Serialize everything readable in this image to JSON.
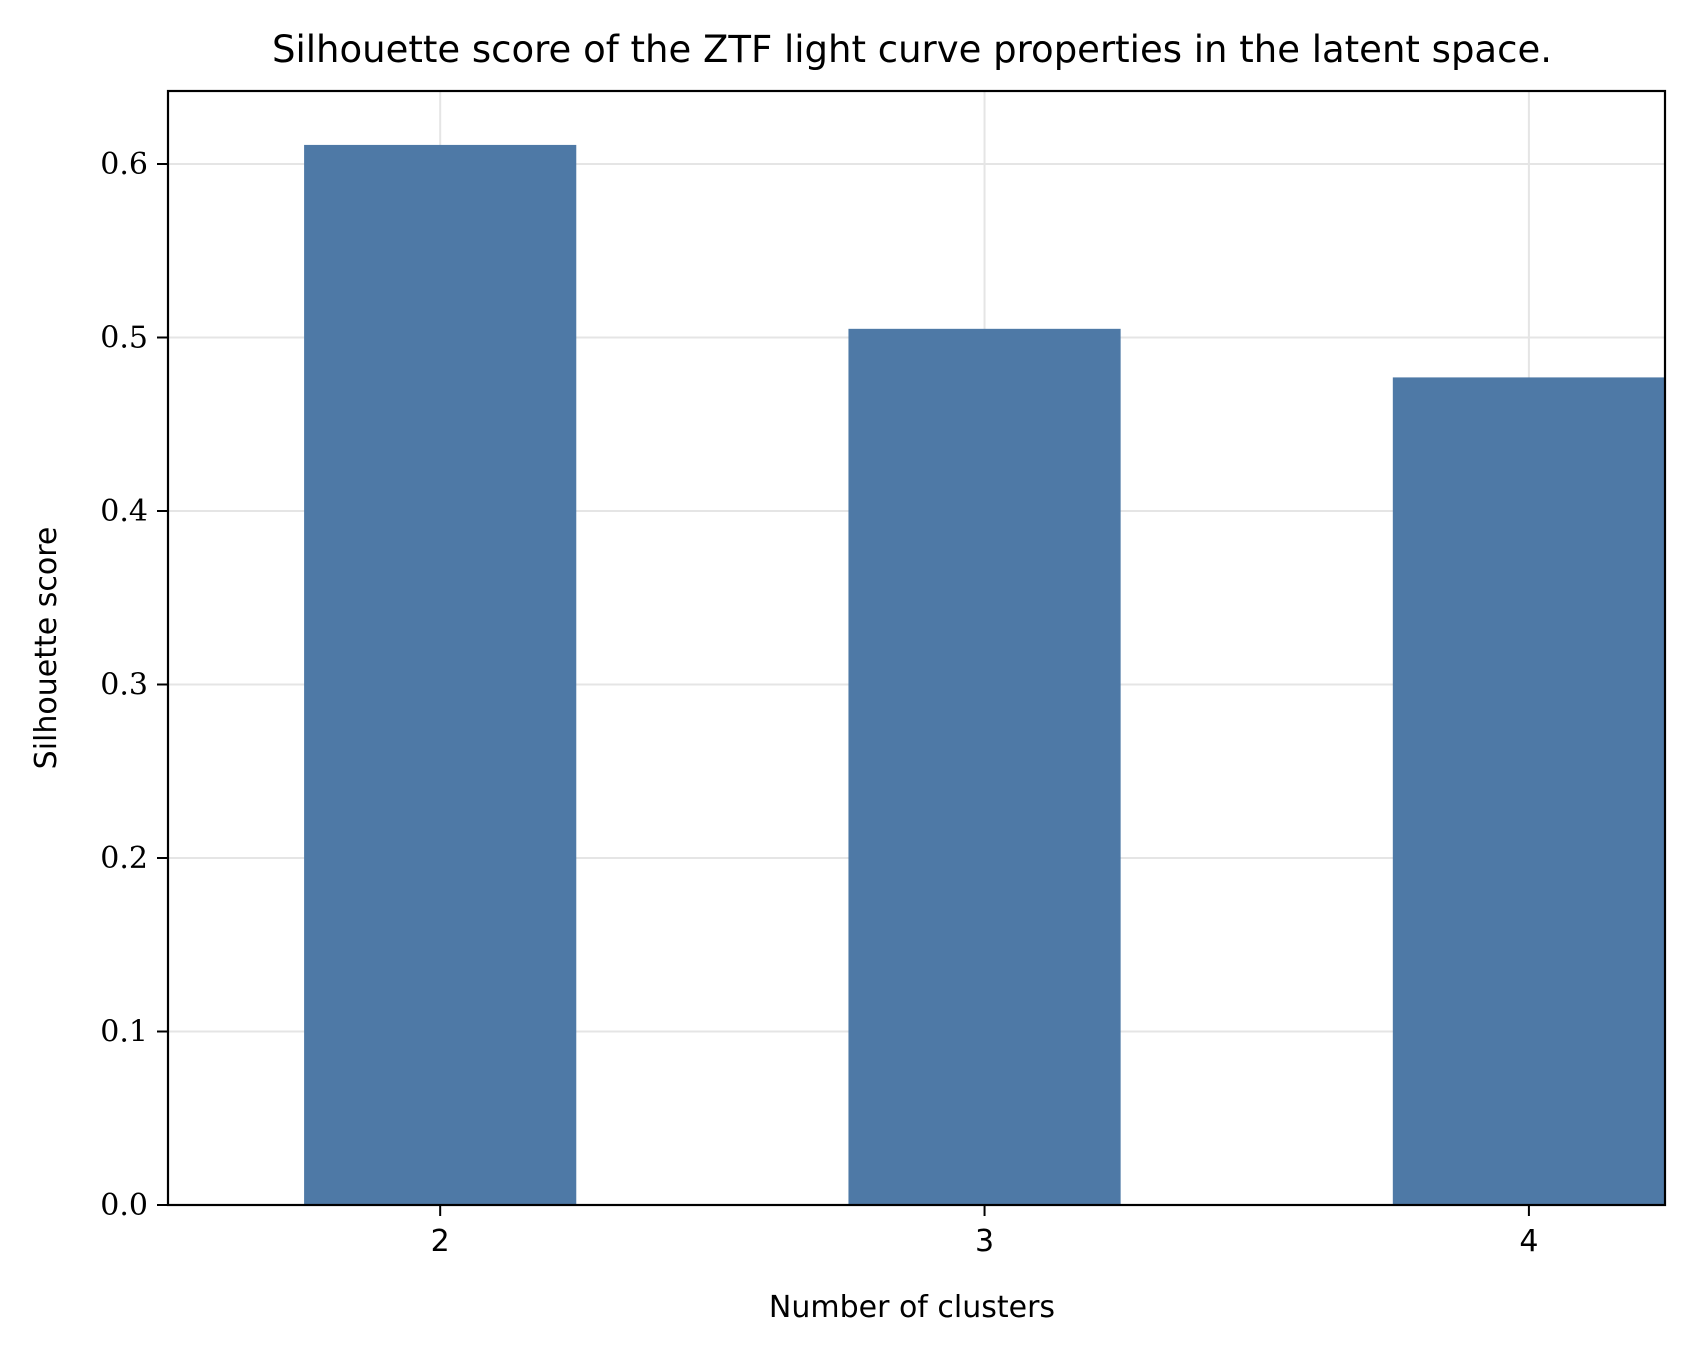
{
  "chart_data": {
    "type": "bar",
    "title": "Silhouette score of the ZTF light curve properties in the latent space.",
    "xlabel": "Number of clusters",
    "ylabel": "Silhouette score",
    "categories": [
      "2",
      "3",
      "4"
    ],
    "values": [
      0.611,
      0.505,
      0.477
    ],
    "ylim": [
      0,
      0.64
    ],
    "yticks": [
      0.0,
      0.1,
      0.2,
      0.3,
      0.4,
      0.5,
      0.6
    ],
    "ytick_labels": [
      "0.0",
      "0.1",
      "0.2",
      "0.3",
      "0.4",
      "0.5",
      "0.6"
    ],
    "grid": true,
    "bar_color": "#4e79a6",
    "grid_color": "#e5e5e5",
    "frame_color": "#000000"
  }
}
